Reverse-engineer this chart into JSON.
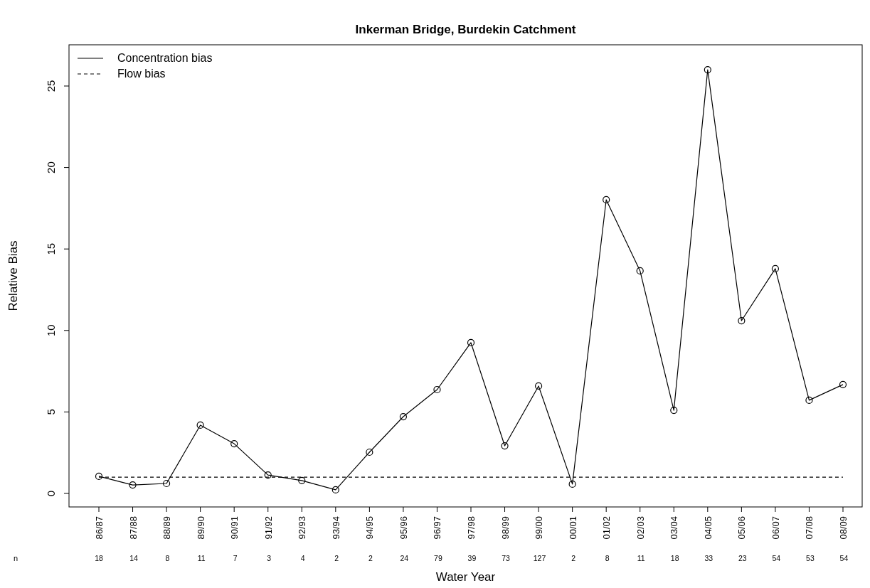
{
  "chart_data": {
    "type": "line",
    "title": "Inkerman Bridge, Burdekin Catchment",
    "xlabel": "Water Year",
    "ylabel": "Relative Bias",
    "categories": [
      "86/87",
      "87/88",
      "88/89",
      "89/90",
      "90/91",
      "91/92",
      "92/93",
      "93/94",
      "94/95",
      "95/96",
      "96/97",
      "97/98",
      "98/99",
      "99/00",
      "00/01",
      "01/02",
      "02/03",
      "03/04",
      "04/05",
      "05/06",
      "06/07",
      "07/08",
      "08/09"
    ],
    "series": [
      {
        "name": "Concentration bias",
        "color": "#000000",
        "marker": "circle",
        "line_style": "solid",
        "values": [
          1.05,
          0.52,
          0.61,
          4.19,
          3.05,
          1.13,
          0.79,
          0.22,
          2.53,
          4.71,
          6.37,
          9.25,
          2.92,
          6.59,
          0.57,
          18.02,
          13.66,
          5.1,
          26.0,
          10.6,
          13.79,
          5.72,
          6.68
        ]
      },
      {
        "name": "Flow bias",
        "color": "#000000",
        "marker": "none",
        "line_style": "dashed",
        "values": [
          1,
          1,
          1,
          1,
          1,
          1,
          1,
          1,
          1,
          1,
          1,
          1,
          1,
          1,
          1,
          1,
          1,
          1,
          1,
          1,
          1,
          1,
          1
        ]
      }
    ],
    "ylim": [
      -0.83,
      27.53
    ],
    "yticks": [
      0,
      5,
      10,
      15,
      20,
      25
    ],
    "legend": "top left",
    "annotations": [
      "n",
      "18 14 8 11 7 3 4 2 2 24 79 39 73 127 2 8 11 18 33 23 54 53 54"
    ]
  }
}
